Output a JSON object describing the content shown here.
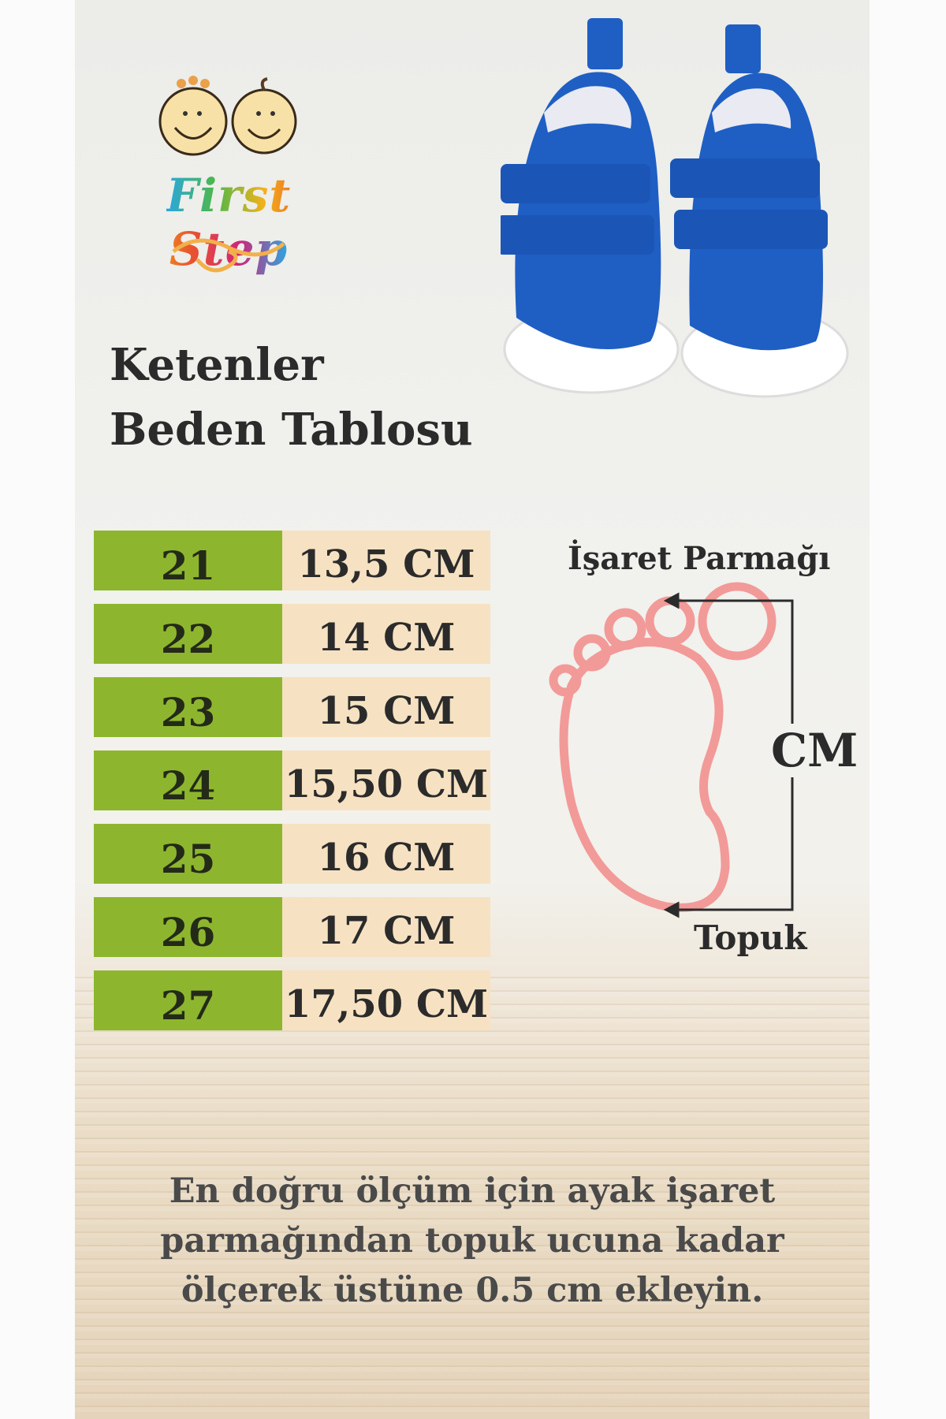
{
  "brand": {
    "name": "First Step"
  },
  "title": {
    "line1": "Ketenler",
    "line2": "Beden Tablosu"
  },
  "size_table": {
    "rows": [
      {
        "size": "21",
        "length": "13,5 CM"
      },
      {
        "size": "22",
        "length": "14 CM"
      },
      {
        "size": "23",
        "length": "15 CM"
      },
      {
        "size": "24",
        "length": "15,50 CM"
      },
      {
        "size": "25",
        "length": "16 CM"
      },
      {
        "size": "26",
        "length": "17 CM"
      },
      {
        "size": "27",
        "length": "17,50 CM"
      }
    ]
  },
  "diagram": {
    "top_label": "İşaret Parmağı",
    "measure_label": "CM",
    "bottom_label": "Topuk"
  },
  "note": {
    "lines": [
      "En doğru ölçüm için ayak işaret",
      "parmağından topuk ucuna kadar",
      "ölçerek üstüne 0.5 cm ekleyin."
    ]
  },
  "colors": {
    "size_cell": "#8db62e",
    "length_cell": "#f6e2c2",
    "foot_outline": "#f29a98",
    "shoe": "#1f5fc4"
  }
}
